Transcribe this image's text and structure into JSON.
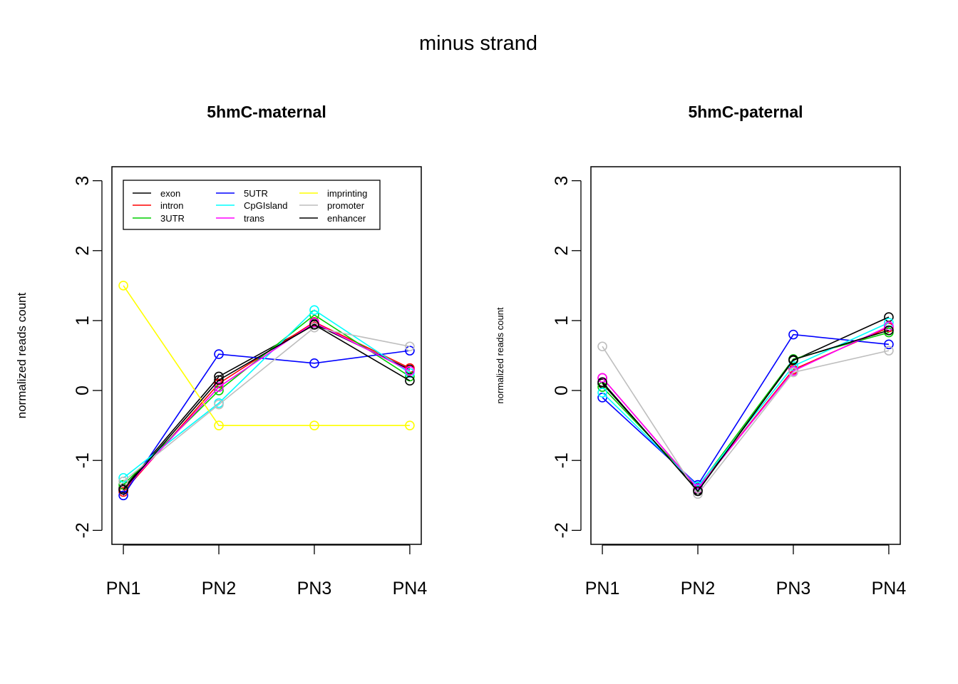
{
  "figure": {
    "title": "minus strand"
  },
  "chart_data": [
    {
      "type": "line",
      "title": "5hmC-maternal",
      "xlabel": "",
      "ylabel": "normalized reads count",
      "categories": [
        "PN1",
        "PN2",
        "PN3",
        "PN4"
      ],
      "yticks": [
        -2,
        -1,
        0,
        1,
        2,
        3
      ],
      "ylim": [
        -2.2,
        3.2
      ],
      "grid": false,
      "legend": "top-left",
      "series": [
        {
          "name": "exon",
          "color": "#000000",
          "values": [
            -1.4,
            0.2,
            0.95,
            0.3
          ]
        },
        {
          "name": "intron",
          "color": "#ff0000",
          "values": [
            -1.45,
            0.1,
            0.98,
            0.32
          ]
        },
        {
          "name": "3UTR",
          "color": "#00cd00",
          "values": [
            -1.35,
            0.0,
            1.08,
            0.2
          ]
        },
        {
          "name": "5UTR",
          "color": "#0000ff",
          "values": [
            -1.5,
            0.52,
            0.39,
            0.57
          ]
        },
        {
          "name": "CpGIsland",
          "color": "#00ffff",
          "values": [
            -1.25,
            -0.18,
            1.15,
            0.25
          ]
        },
        {
          "name": "trans",
          "color": "#ff00ff",
          "values": [
            -1.42,
            0.05,
            0.97,
            0.28
          ]
        },
        {
          "name": "imprinting",
          "color": "#ffff00",
          "values": [
            1.5,
            -0.5,
            -0.5,
            -0.5
          ]
        },
        {
          "name": "promoter",
          "color": "#bebebe",
          "values": [
            -1.3,
            -0.2,
            0.9,
            0.63
          ]
        },
        {
          "name": "enhancer",
          "color": "#000000",
          "values": [
            -1.42,
            0.15,
            0.94,
            0.14
          ]
        }
      ]
    },
    {
      "type": "line",
      "title": "5hmC-paternal",
      "xlabel": "",
      "ylabel": "normalized reads count",
      "categories": [
        "PN1",
        "PN2",
        "PN3",
        "PN4"
      ],
      "yticks": [
        -2,
        -1,
        0,
        1,
        2,
        3
      ],
      "ylim": [
        -2.2,
        3.2
      ],
      "grid": false,
      "legend": "none",
      "series": [
        {
          "name": "exon",
          "color": "#000000",
          "values": [
            0.1,
            -1.42,
            0.43,
            1.05
          ]
        },
        {
          "name": "intron",
          "color": "#ff0000",
          "values": [
            0.18,
            -1.4,
            0.3,
            0.9
          ]
        },
        {
          "name": "3UTR",
          "color": "#00cd00",
          "values": [
            0.05,
            -1.38,
            0.45,
            0.83
          ]
        },
        {
          "name": "5UTR",
          "color": "#0000ff",
          "values": [
            -0.1,
            -1.35,
            0.8,
            0.66
          ]
        },
        {
          "name": "CpGIsland",
          "color": "#00ffff",
          "values": [
            -0.03,
            -1.37,
            0.35,
            0.97
          ]
        },
        {
          "name": "trans",
          "color": "#ff00ff",
          "values": [
            0.18,
            -1.4,
            0.28,
            0.92
          ]
        },
        {
          "name": "promoter",
          "color": "#bebebe",
          "values": [
            0.63,
            -1.48,
            0.26,
            0.57
          ]
        },
        {
          "name": "enhancer",
          "color": "#000000",
          "values": [
            0.12,
            -1.44,
            0.44,
            0.86
          ]
        }
      ]
    }
  ]
}
